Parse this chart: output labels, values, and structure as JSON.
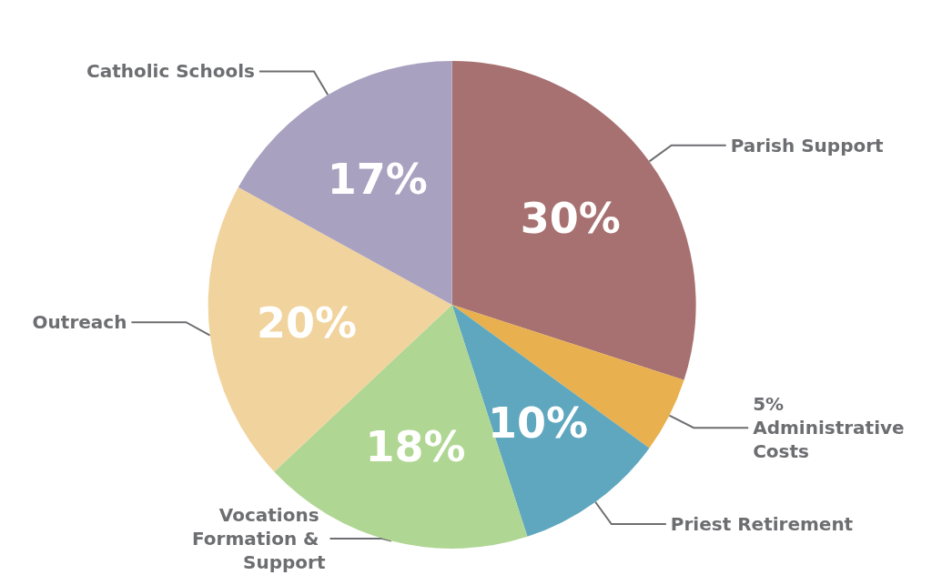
{
  "chart_data": {
    "type": "pie",
    "categories": [
      "Parish Support",
      "Administrative Costs",
      "Priest Retirement",
      "Vocations Formation & Support",
      "Outreach",
      "Catholic Schools"
    ],
    "values": [
      30,
      5,
      10,
      18,
      20,
      17
    ],
    "colors": [
      "#a87171",
      "#e8b04e",
      "#5ea7be",
      "#afd692",
      "#f1d39e",
      "#a9a1c0"
    ],
    "value_labels": [
      "30%",
      "5%",
      "10%",
      "18%",
      "20%",
      "17%"
    ]
  }
}
